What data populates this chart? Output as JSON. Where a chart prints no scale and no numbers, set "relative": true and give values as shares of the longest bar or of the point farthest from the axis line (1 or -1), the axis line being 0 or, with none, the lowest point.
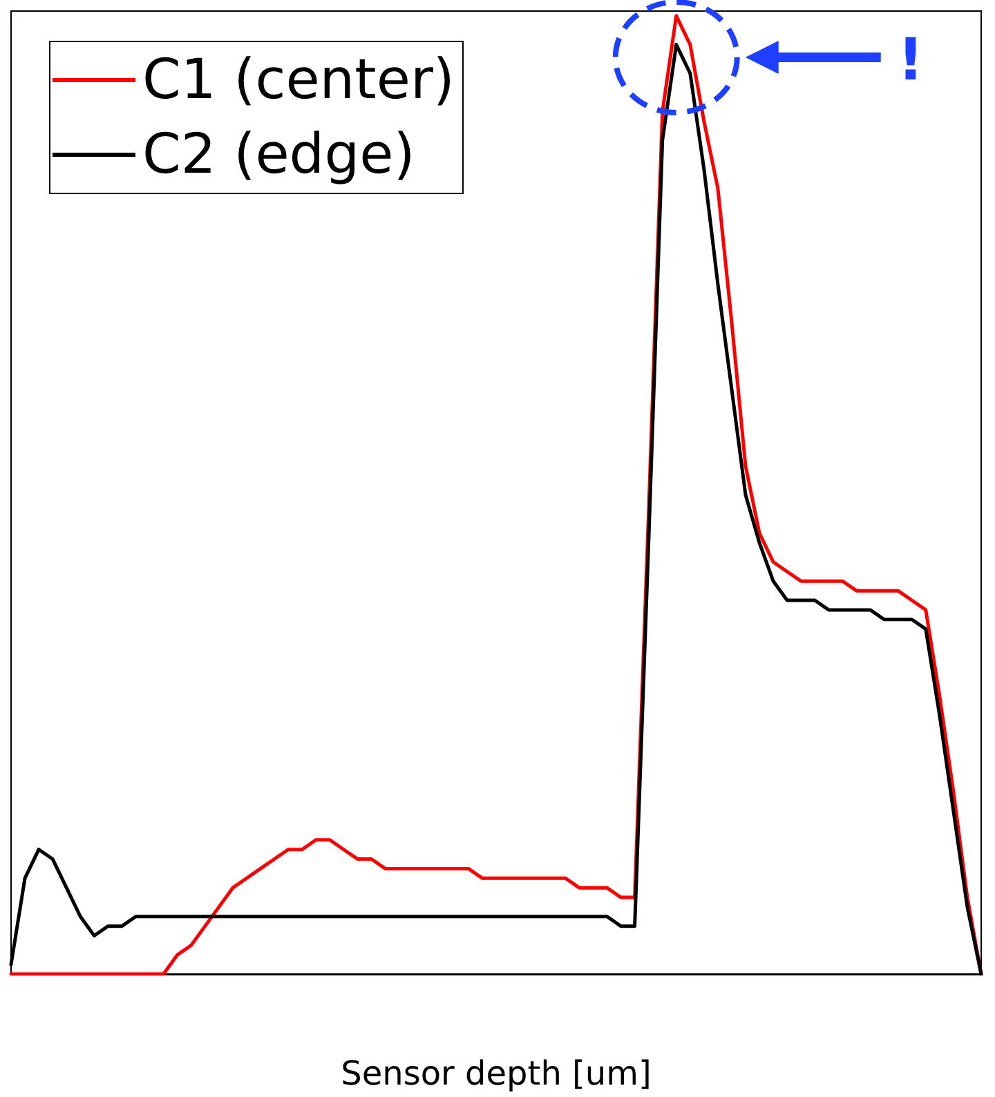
{
  "chart_data": {
    "type": "line",
    "relative": true,
    "xlabel": "Sensor depth [um]",
    "legend": "top left",
    "grid": false,
    "marker": "none",
    "line_style": "solid",
    "categories": [
      null,
      null,
      null,
      null,
      null,
      null,
      null,
      null,
      null,
      null,
      null,
      null,
      null,
      null,
      null,
      null,
      null,
      null,
      null,
      null,
      null,
      null,
      null,
      null,
      null,
      null,
      null,
      null,
      null,
      null,
      null,
      null,
      null,
      null,
      null,
      null,
      null,
      null,
      null,
      null,
      null,
      null,
      null,
      null,
      null,
      null,
      null,
      null,
      null,
      null,
      null,
      null,
      null,
      null,
      null,
      null,
      null,
      null,
      null,
      null,
      null,
      null,
      null,
      null,
      null,
      null,
      null,
      null,
      null,
      null,
      null
    ],
    "series": [
      {
        "name": "C1 (center)",
        "color": "#ff0000",
        "values": [
          0,
          0,
          0,
          0,
          0,
          0,
          0,
          0,
          0,
          0,
          0,
          0,
          0.02,
          0.03,
          0.05,
          0.07,
          0.09,
          0.1,
          0.11,
          0.12,
          0.13,
          0.13,
          0.14,
          0.14,
          0.13,
          0.12,
          0.12,
          0.11,
          0.11,
          0.11,
          0.11,
          0.11,
          0.11,
          0.11,
          0.1,
          0.1,
          0.1,
          0.1,
          0.1,
          0.1,
          0.1,
          0.09,
          0.09,
          0.09,
          0.08,
          0.08,
          0.48,
          0.9,
          1,
          0.97,
          0.89,
          0.82,
          0.68,
          0.53,
          0.46,
          0.43,
          0.42,
          0.41,
          0.41,
          0.41,
          0.41,
          0.4,
          0.4,
          0.4,
          0.4,
          0.39,
          0.38,
          0.29,
          0.19,
          0.08,
          0
        ]
      },
      {
        "name": "C2 (edge)",
        "color": "#000000",
        "values": [
          0.01,
          0.1,
          0.13,
          0.12,
          0.09,
          0.06,
          0.04,
          0.05,
          0.05,
          0.06,
          0.06,
          0.06,
          0.06,
          0.06,
          0.06,
          0.06,
          0.06,
          0.06,
          0.06,
          0.06,
          0.06,
          0.06,
          0.06,
          0.06,
          0.06,
          0.06,
          0.06,
          0.06,
          0.06,
          0.06,
          0.06,
          0.06,
          0.06,
          0.06,
          0.06,
          0.06,
          0.06,
          0.06,
          0.06,
          0.06,
          0.06,
          0.06,
          0.06,
          0.06,
          0.05,
          0.05,
          0.45,
          0.87,
          0.97,
          0.94,
          0.84,
          0.72,
          0.61,
          0.5,
          0.45,
          0.41,
          0.39,
          0.39,
          0.39,
          0.38,
          0.38,
          0.38,
          0.38,
          0.37,
          0.37,
          0.37,
          0.36,
          0.27,
          0.17,
          0.07,
          0
        ]
      }
    ],
    "annotations": [
      "!"
    ]
  }
}
